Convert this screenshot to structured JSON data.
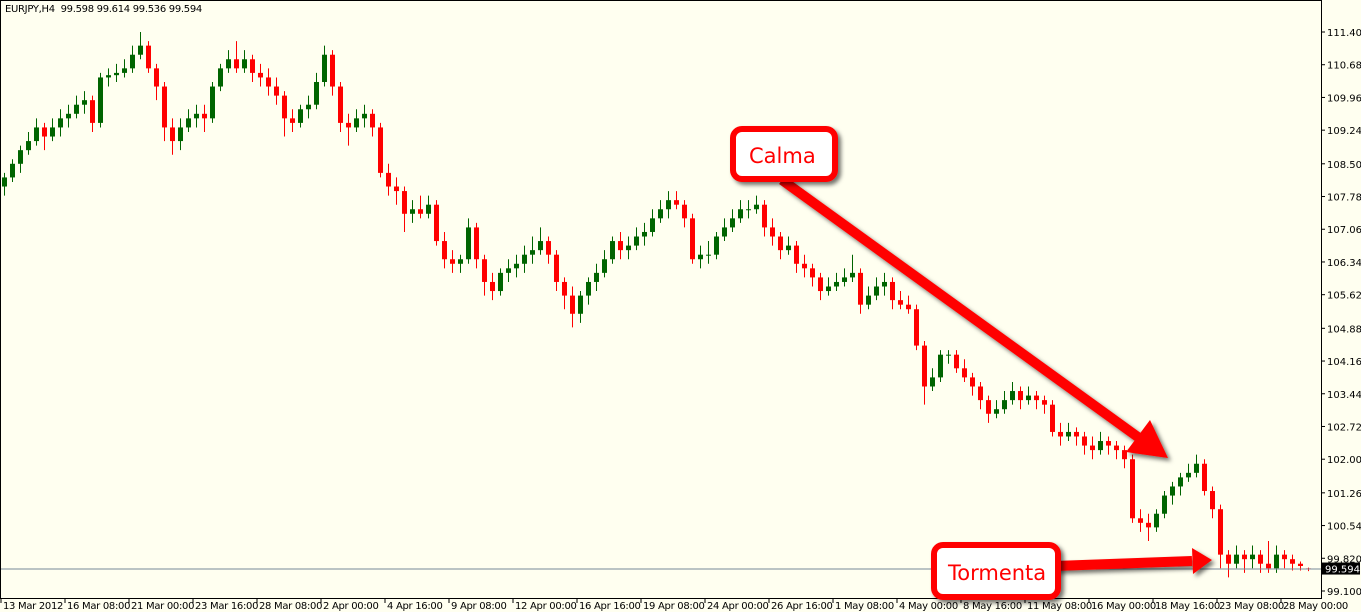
{
  "header": {
    "symbol": "EURJPY,H4",
    "ohlc": "99.598 99.614 99.536 99.594"
  },
  "colors": {
    "background": "#fffff0",
    "bull": "#006400",
    "bear": "#ff0000",
    "bid_line": "#778899",
    "annotation": "#ff0000"
  },
  "annotations": [
    {
      "label": "Calma",
      "icon": "arrow-down-right"
    },
    {
      "label": "Tormenta",
      "icon": "arrow-right"
    }
  ],
  "chart_data": {
    "type": "candlestick",
    "title": "",
    "grid": false,
    "ylim": [
      99.1,
      111.4
    ],
    "y_ticks": [
      "111.400",
      "110.680",
      "109.960",
      "109.240",
      "108.500",
      "107.780",
      "107.060",
      "106.340",
      "105.620",
      "104.880",
      "104.160",
      "103.440",
      "102.720",
      "102.000",
      "101.260",
      "100.540",
      "99.820",
      "99.100"
    ],
    "x_ticks": [
      "13 Mar 2012",
      "16 Mar 08:00",
      "21 Mar 00:00",
      "23 Mar 16:00",
      "28 Mar 08:00",
      "2 Apr 00:00",
      "4 Apr 16:00",
      "9 Apr 08:00",
      "12 Apr 00:00",
      "16 Apr 16:00",
      "19 Apr 08:00",
      "24 Apr 00:00",
      "26 Apr 16:00",
      "1 May 08:00",
      "4 May 00:00",
      "8 May 16:00",
      "11 May 08:00",
      "16 May 00:00",
      "18 May 16:00",
      "23 May 08:00",
      "28 May 00:00"
    ],
    "current_price": 99.594,
    "current_price_label": "99.594",
    "candles_ohlc": [
      [
        108.0,
        108.3,
        107.8,
        108.2
      ],
      [
        108.2,
        108.6,
        108.1,
        108.5
      ],
      [
        108.5,
        108.9,
        108.3,
        108.8
      ],
      [
        108.8,
        109.2,
        108.7,
        109.0
      ],
      [
        109.0,
        109.5,
        108.9,
        109.3
      ],
      [
        109.3,
        109.4,
        108.8,
        109.1
      ],
      [
        109.1,
        109.5,
        109.0,
        109.3
      ],
      [
        109.3,
        109.7,
        109.1,
        109.5
      ],
      [
        109.5,
        109.8,
        109.3,
        109.6
      ],
      [
        109.6,
        110.0,
        109.5,
        109.8
      ],
      [
        109.8,
        110.1,
        109.6,
        109.9
      ],
      [
        109.9,
        110.0,
        109.2,
        109.4
      ],
      [
        109.4,
        110.5,
        109.3,
        110.4
      ],
      [
        110.4,
        110.6,
        110.2,
        110.45
      ],
      [
        110.45,
        110.7,
        110.3,
        110.5
      ],
      [
        110.5,
        110.8,
        110.4,
        110.6
      ],
      [
        110.6,
        111.1,
        110.5,
        110.9
      ],
      [
        110.9,
        111.4,
        110.8,
        111.1
      ],
      [
        111.1,
        111.2,
        110.5,
        110.6
      ],
      [
        110.6,
        110.7,
        109.9,
        110.2
      ],
      [
        110.2,
        110.3,
        109.0,
        109.3
      ],
      [
        109.3,
        109.5,
        108.7,
        109.0
      ],
      [
        109.0,
        109.5,
        108.8,
        109.3
      ],
      [
        109.3,
        109.7,
        109.2,
        109.5
      ],
      [
        109.5,
        109.8,
        109.3,
        109.6
      ],
      [
        109.6,
        109.8,
        109.2,
        109.5
      ],
      [
        109.5,
        110.3,
        109.4,
        110.2
      ],
      [
        110.2,
        110.7,
        110.1,
        110.6
      ],
      [
        110.6,
        111.0,
        110.5,
        110.8
      ],
      [
        110.8,
        111.2,
        110.5,
        110.6
      ],
      [
        110.6,
        111.0,
        110.5,
        110.8
      ],
      [
        110.8,
        110.9,
        110.3,
        110.5
      ],
      [
        110.5,
        110.7,
        110.2,
        110.4
      ],
      [
        110.4,
        110.6,
        110.0,
        110.2
      ],
      [
        110.2,
        110.4,
        109.8,
        110.0
      ],
      [
        110.0,
        110.1,
        109.1,
        109.5
      ],
      [
        109.5,
        109.7,
        109.2,
        109.4
      ],
      [
        109.4,
        109.8,
        109.3,
        109.7
      ],
      [
        109.7,
        110.0,
        109.5,
        109.8
      ],
      [
        109.8,
        110.5,
        109.7,
        110.3
      ],
      [
        110.3,
        111.1,
        110.2,
        110.9
      ],
      [
        110.9,
        111.0,
        110.0,
        110.2
      ],
      [
        110.2,
        110.3,
        109.2,
        109.4
      ],
      [
        109.4,
        109.6,
        108.9,
        109.3
      ],
      [
        109.3,
        109.7,
        109.2,
        109.5
      ],
      [
        109.5,
        109.8,
        109.3,
        109.6
      ],
      [
        109.6,
        109.7,
        109.1,
        109.3
      ],
      [
        109.3,
        109.4,
        108.2,
        108.3
      ],
      [
        108.3,
        108.5,
        107.8,
        108.0
      ],
      [
        108.0,
        108.2,
        107.6,
        107.9
      ],
      [
        107.9,
        108.0,
        107.0,
        107.4
      ],
      [
        107.4,
        107.7,
        107.2,
        107.5
      ],
      [
        107.5,
        107.8,
        107.3,
        107.4
      ],
      [
        107.4,
        107.8,
        107.3,
        107.6
      ],
      [
        107.6,
        107.7,
        106.7,
        106.8
      ],
      [
        106.8,
        107.0,
        106.2,
        106.4
      ],
      [
        106.4,
        106.6,
        106.1,
        106.3
      ],
      [
        106.3,
        106.5,
        106.1,
        106.4
      ],
      [
        106.4,
        107.3,
        106.3,
        107.1
      ],
      [
        107.1,
        107.2,
        106.2,
        106.4
      ],
      [
        106.4,
        106.5,
        105.6,
        105.9
      ],
      [
        105.9,
        106.1,
        105.5,
        105.7
      ],
      [
        105.7,
        106.2,
        105.6,
        106.1
      ],
      [
        106.1,
        106.4,
        105.9,
        106.2
      ],
      [
        106.2,
        106.5,
        106.0,
        106.3
      ],
      [
        106.3,
        106.7,
        106.1,
        106.5
      ],
      [
        106.5,
        106.9,
        106.3,
        106.6
      ],
      [
        106.6,
        107.1,
        106.5,
        106.8
      ],
      [
        106.8,
        106.9,
        106.3,
        106.5
      ],
      [
        106.5,
        106.6,
        105.7,
        105.9
      ],
      [
        105.9,
        106.0,
        105.3,
        105.6
      ],
      [
        105.6,
        105.8,
        104.9,
        105.2
      ],
      [
        105.2,
        105.7,
        105.0,
        105.6
      ],
      [
        105.6,
        106.0,
        105.4,
        105.9
      ],
      [
        105.9,
        106.3,
        105.7,
        106.1
      ],
      [
        106.1,
        106.6,
        106.0,
        106.4
      ],
      [
        106.4,
        106.9,
        106.3,
        106.8
      ],
      [
        106.8,
        107.0,
        106.4,
        106.6
      ],
      [
        106.6,
        106.9,
        106.4,
        106.7
      ],
      [
        106.7,
        107.1,
        106.6,
        106.9
      ],
      [
        106.9,
        107.2,
        106.7,
        107.0
      ],
      [
        107.0,
        107.5,
        106.9,
        107.3
      ],
      [
        107.3,
        107.7,
        107.2,
        107.5
      ],
      [
        107.5,
        107.9,
        107.3,
        107.7
      ],
      [
        107.7,
        107.9,
        107.5,
        107.6
      ],
      [
        107.6,
        107.7,
        107.1,
        107.3
      ],
      [
        107.3,
        107.4,
        106.3,
        106.4
      ],
      [
        106.4,
        106.7,
        106.2,
        106.5
      ],
      [
        106.5,
        106.8,
        106.3,
        106.5
      ],
      [
        106.5,
        107.0,
        106.4,
        106.9
      ],
      [
        106.9,
        107.3,
        106.8,
        107.1
      ],
      [
        107.1,
        107.5,
        107.0,
        107.3
      ],
      [
        107.3,
        107.7,
        107.2,
        107.5
      ],
      [
        107.5,
        107.7,
        107.3,
        107.5
      ],
      [
        107.5,
        107.8,
        107.4,
        107.6
      ],
      [
        107.6,
        107.7,
        106.9,
        107.1
      ],
      [
        107.1,
        107.3,
        106.7,
        106.9
      ],
      [
        106.9,
        107.0,
        106.4,
        106.6
      ],
      [
        106.6,
        106.9,
        106.5,
        106.7
      ],
      [
        106.7,
        106.8,
        106.1,
        106.3
      ],
      [
        106.3,
        106.5,
        106.0,
        106.2
      ],
      [
        106.2,
        106.3,
        105.8,
        106.0
      ],
      [
        106.0,
        106.1,
        105.5,
        105.7
      ],
      [
        105.7,
        106.0,
        105.6,
        105.8
      ],
      [
        105.8,
        106.1,
        105.7,
        105.9
      ],
      [
        105.9,
        106.2,
        105.8,
        106.0
      ],
      [
        106.0,
        106.5,
        105.9,
        106.1
      ],
      [
        106.1,
        106.2,
        105.2,
        105.4
      ],
      [
        105.4,
        105.8,
        105.3,
        105.6
      ],
      [
        105.6,
        106.0,
        105.5,
        105.8
      ],
      [
        105.8,
        106.1,
        105.6,
        105.9
      ],
      [
        105.9,
        106.0,
        105.3,
        105.5
      ],
      [
        105.5,
        105.7,
        105.3,
        105.4
      ],
      [
        105.4,
        105.6,
        105.2,
        105.3
      ],
      [
        105.3,
        105.4,
        104.4,
        104.5
      ],
      [
        104.5,
        104.6,
        103.2,
        103.6
      ],
      [
        103.6,
        104.0,
        103.5,
        103.8
      ],
      [
        103.8,
        104.4,
        103.7,
        104.3
      ],
      [
        104.3,
        104.4,
        104.1,
        104.3
      ],
      [
        104.3,
        104.4,
        103.9,
        104.0
      ],
      [
        104.0,
        104.2,
        103.7,
        103.8
      ],
      [
        103.8,
        103.9,
        103.4,
        103.6
      ],
      [
        103.6,
        103.7,
        103.1,
        103.3
      ],
      [
        103.3,
        103.4,
        102.8,
        103.0
      ],
      [
        103.0,
        103.3,
        102.9,
        103.1
      ],
      [
        103.1,
        103.5,
        103.0,
        103.3
      ],
      [
        103.3,
        103.7,
        103.2,
        103.5
      ],
      [
        103.5,
        103.6,
        103.1,
        103.3
      ],
      [
        103.3,
        103.6,
        103.2,
        103.4
      ],
      [
        103.4,
        103.5,
        103.1,
        103.3
      ],
      [
        103.3,
        103.4,
        103.0,
        103.2
      ],
      [
        103.2,
        103.3,
        102.5,
        102.6
      ],
      [
        102.6,
        102.8,
        102.3,
        102.5
      ],
      [
        102.5,
        102.8,
        102.4,
        102.6
      ],
      [
        102.6,
        102.7,
        102.3,
        102.5
      ],
      [
        102.5,
        102.6,
        102.1,
        102.3
      ],
      [
        102.3,
        102.5,
        102.0,
        102.2
      ],
      [
        102.2,
        102.6,
        102.1,
        102.4
      ],
      [
        102.4,
        102.5,
        102.1,
        102.3
      ],
      [
        102.3,
        102.4,
        102.0,
        102.2
      ],
      [
        102.2,
        102.3,
        101.8,
        102.0
      ],
      [
        102.0,
        102.1,
        100.6,
        100.7
      ],
      [
        100.7,
        100.9,
        100.4,
        100.6
      ],
      [
        100.6,
        100.8,
        100.2,
        100.5
      ],
      [
        100.5,
        100.9,
        100.4,
        100.8
      ],
      [
        100.8,
        101.3,
        100.7,
        101.2
      ],
      [
        101.2,
        101.5,
        101.0,
        101.4
      ],
      [
        101.4,
        101.7,
        101.2,
        101.6
      ],
      [
        101.6,
        101.9,
        101.5,
        101.7
      ],
      [
        101.7,
        102.1,
        101.6,
        101.9
      ],
      [
        101.9,
        102.0,
        101.2,
        101.3
      ],
      [
        101.3,
        101.4,
        100.7,
        100.9
      ],
      [
        100.9,
        101.0,
        99.6,
        99.9
      ],
      [
        99.9,
        100.0,
        99.4,
        99.7
      ],
      [
        99.7,
        100.1,
        99.6,
        99.9
      ],
      [
        99.9,
        100.0,
        99.5,
        99.8
      ],
      [
        99.8,
        100.1,
        99.6,
        99.9
      ],
      [
        99.9,
        100.0,
        99.5,
        99.7
      ],
      [
        99.7,
        100.2,
        99.5,
        99.6
      ],
      [
        99.6,
        100.1,
        99.5,
        99.9
      ],
      [
        99.9,
        100.0,
        99.6,
        99.8
      ],
      [
        99.8,
        99.9,
        99.55,
        99.7
      ],
      [
        99.7,
        99.75,
        99.55,
        99.65
      ],
      [
        99.598,
        99.614,
        99.536,
        99.594
      ]
    ]
  }
}
